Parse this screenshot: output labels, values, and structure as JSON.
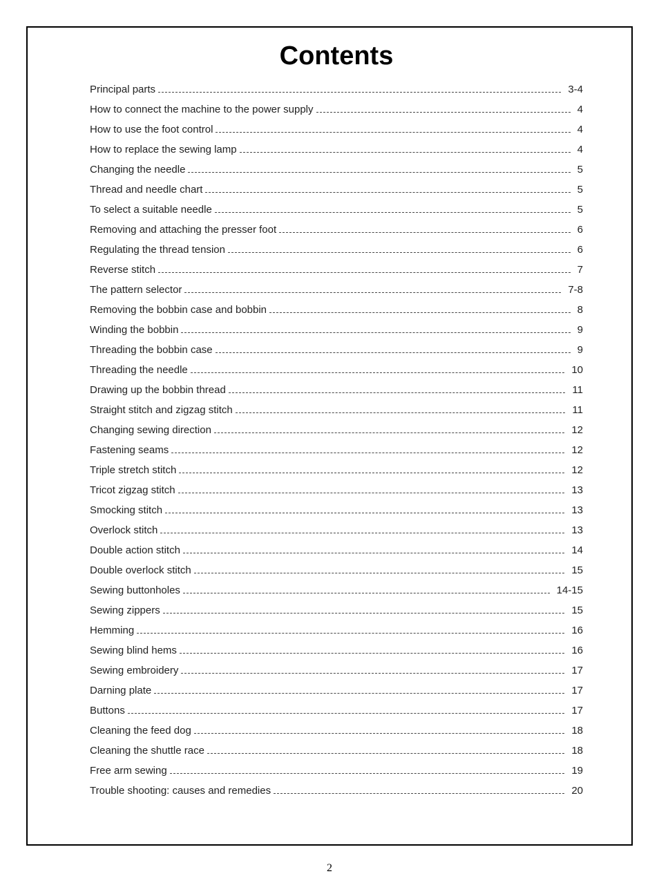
{
  "title": "Contents",
  "page_number": "2",
  "toc": [
    {
      "label": "Principal parts",
      "page": "3-4"
    },
    {
      "label": "How to connect the machine to the power supply",
      "page": "4"
    },
    {
      "label": "How to use the foot control",
      "page": "4"
    },
    {
      "label": "How to replace the sewing lamp",
      "page": "4"
    },
    {
      "label": "Changing the needle",
      "page": "5"
    },
    {
      "label": "Thread and needle chart",
      "page": "5"
    },
    {
      "label": "To select a suitable needle",
      "page": "5"
    },
    {
      "label": "Removing and attaching the presser foot",
      "page": "6"
    },
    {
      "label": "Regulating the thread tension",
      "page": "6"
    },
    {
      "label": "Reverse stitch",
      "page": "7"
    },
    {
      "label": "The pattern selector",
      "page": "7-8"
    },
    {
      "label": "Removing the bobbin case and bobbin",
      "page": "8"
    },
    {
      "label": "Winding the bobbin",
      "page": "9"
    },
    {
      "label": "Threading the bobbin case",
      "page": "9"
    },
    {
      "label": "Threading the needle",
      "page": "10"
    },
    {
      "label": "Drawing up the bobbin thread",
      "page": "11"
    },
    {
      "label": "Straight stitch and zigzag stitch",
      "page": "11"
    },
    {
      "label": "Changing sewing direction",
      "page": "12"
    },
    {
      "label": "Fastening seams",
      "page": "12"
    },
    {
      "label": "Triple stretch stitch",
      "page": "12"
    },
    {
      "label": "Tricot zigzag stitch",
      "page": "13"
    },
    {
      "label": "Smocking stitch",
      "page": "13"
    },
    {
      "label": "Overlock stitch",
      "page": "13"
    },
    {
      "label": "Double action stitch",
      "page": "14"
    },
    {
      "label": "Double overlock stitch",
      "page": "15"
    },
    {
      "label": "Sewing buttonholes",
      "page": "14-15"
    },
    {
      "label": "Sewing zippers",
      "page": "15"
    },
    {
      "label": "Hemming",
      "page": "16"
    },
    {
      "label": "Sewing blind hems",
      "page": "16"
    },
    {
      "label": "Sewing embroidery",
      "page": "17"
    },
    {
      "label": "Darning plate",
      "page": "17"
    },
    {
      "label": "Buttons",
      "page": "17"
    },
    {
      "label": "Cleaning the feed dog",
      "page": "18"
    },
    {
      "label": "Cleaning the shuttle race",
      "page": "18"
    },
    {
      "label": "Free arm sewing",
      "page": "19"
    },
    {
      "label": "Trouble shooting: causes and remedies",
      "page": "20"
    }
  ]
}
